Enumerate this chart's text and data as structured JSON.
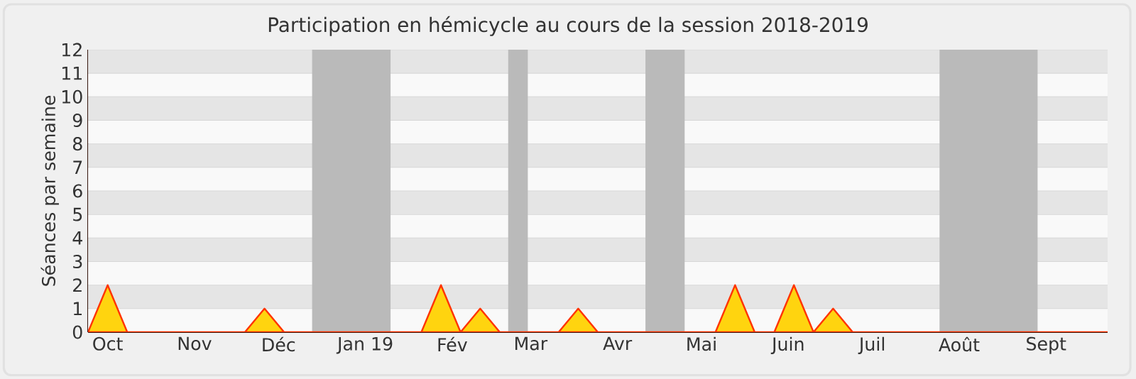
{
  "chart_data": {
    "type": "area",
    "title": "Participation en hémicycle au cours de la session 2018-2019",
    "ylabel": "Séances par semaine",
    "x": [
      "2018-09-24",
      "2018-10-01",
      "2018-10-08",
      "2018-10-15",
      "2018-10-22",
      "2018-10-29",
      "2018-11-05",
      "2018-11-12",
      "2018-11-19",
      "2018-11-26",
      "2018-12-03",
      "2018-12-10",
      "2018-12-17",
      "2018-12-24",
      "2018-12-31",
      "2019-01-07",
      "2019-01-14",
      "2019-01-21",
      "2019-01-28",
      "2019-02-04",
      "2019-02-11",
      "2019-02-18",
      "2019-02-25",
      "2019-03-04",
      "2019-03-11",
      "2019-03-18",
      "2019-03-25",
      "2019-04-01",
      "2019-04-08",
      "2019-04-15",
      "2019-04-22",
      "2019-04-29",
      "2019-05-06",
      "2019-05-13",
      "2019-05-20",
      "2019-05-27",
      "2019-06-03",
      "2019-06-10",
      "2019-06-17",
      "2019-06-24",
      "2019-07-01",
      "2019-07-08",
      "2019-07-15",
      "2019-07-22",
      "2019-07-29",
      "2019-08-05",
      "2019-08-12",
      "2019-08-19",
      "2019-08-26",
      "2019-09-02",
      "2019-09-09",
      "2019-09-16",
      "2019-09-23"
    ],
    "series": [
      {
        "color": "#ffd40f",
        "values": [
          0,
          2,
          0,
          0,
          0,
          0,
          0,
          0,
          0,
          1,
          0,
          0,
          0,
          0,
          0,
          0,
          0,
          0,
          2,
          0,
          1,
          0,
          0,
          0,
          0,
          1,
          0,
          0,
          0,
          0,
          0,
          0,
          0,
          2,
          0,
          0,
          2,
          0,
          1,
          0,
          0,
          0,
          0,
          0,
          0,
          0,
          0,
          0,
          0,
          0,
          0,
          0,
          0
        ]
      }
    ],
    "xlim": [
      "2018-09-24",
      "2019-09-23"
    ],
    "ylim": [
      0,
      12
    ],
    "yticks": [
      0,
      1,
      2,
      3,
      4,
      5,
      6,
      7,
      8,
      9,
      10,
      11,
      12
    ],
    "xticks": [
      {
        "value": "2018-10-01",
        "label": "Oct"
      },
      {
        "value": "2018-11-01",
        "label": "Nov"
      },
      {
        "value": "2018-12-01",
        "label": "Déc"
      },
      {
        "value": "2019-01-01",
        "label": "Jan 19"
      },
      {
        "value": "2019-02-01",
        "label": "Fév"
      },
      {
        "value": "2019-03-01",
        "label": "Mar"
      },
      {
        "value": "2019-04-01",
        "label": "Avr"
      },
      {
        "value": "2019-05-01",
        "label": "Mai"
      },
      {
        "value": "2019-06-01",
        "label": "Juin"
      },
      {
        "value": "2019-07-01",
        "label": "Juil"
      },
      {
        "value": "2019-08-01",
        "label": "Août"
      },
      {
        "value": "2019-09-01",
        "label": "Sept"
      }
    ],
    "bands": [
      {
        "axis": "x",
        "from": "2018-12-13",
        "to": "2019-01-10",
        "color": "#bababa"
      },
      {
        "axis": "x",
        "from": "2019-02-21",
        "to": "2019-02-28",
        "color": "#bababa"
      },
      {
        "axis": "x",
        "from": "2019-04-11",
        "to": "2019-04-25",
        "color": "#bababa"
      },
      {
        "axis": "x",
        "from": "2019-07-25",
        "to": "2019-08-29",
        "color": "#bababa"
      }
    ],
    "grid": "y"
  }
}
